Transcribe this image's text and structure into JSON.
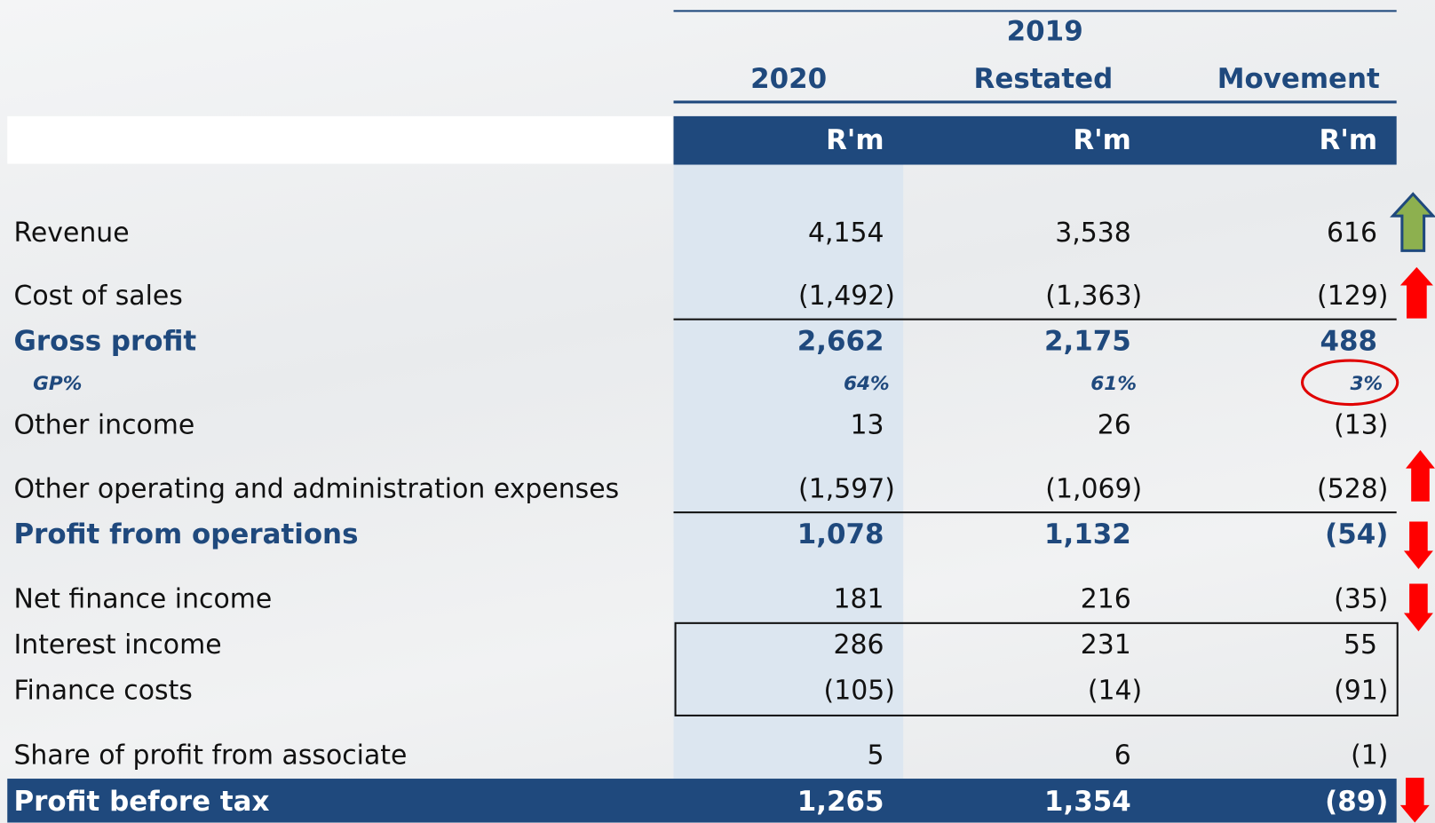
{
  "table": {
    "header": {
      "years": [
        "2020",
        "2019",
        "Restated",
        "Movement"
      ],
      "units": [
        "R'm",
        "R'm",
        "R'm"
      ]
    },
    "rows": [
      {
        "label": "Revenue",
        "values": [
          "4,154",
          "3,538",
          "616"
        ]
      },
      {
        "label": "Cost of sales",
        "values": [
          "(1,492)",
          "(1,363)",
          "(129)"
        ]
      },
      {
        "label": "Gross profit",
        "values": [
          "2,662",
          "2,175",
          "488"
        ]
      },
      {
        "label": "GP%",
        "values": [
          "64%",
          "61%",
          "3%"
        ]
      },
      {
        "label": "Other income",
        "values": [
          "13",
          "26",
          "(13)"
        ]
      },
      {
        "label": "Other operating and administration expenses",
        "values": [
          "(1,597)",
          "(1,069)",
          "(528)"
        ]
      },
      {
        "label": "Profit from operations",
        "values": [
          "1,078",
          "1,132",
          "(54)"
        ]
      },
      {
        "label": "Net finance income",
        "values": [
          "181",
          "216",
          "(35)"
        ]
      },
      {
        "label": "Interest income",
        "values": [
          "286",
          "231",
          "55"
        ]
      },
      {
        "label": "Finance costs",
        "values": [
          "(105)",
          "(14)",
          "(91)"
        ]
      },
      {
        "label": "Share of profit from associate",
        "values": [
          "5",
          "6",
          "(1)"
        ]
      },
      {
        "label": "Profit before tax",
        "values": [
          "1,265",
          "1,354",
          "(89)"
        ]
      }
    ]
  }
}
